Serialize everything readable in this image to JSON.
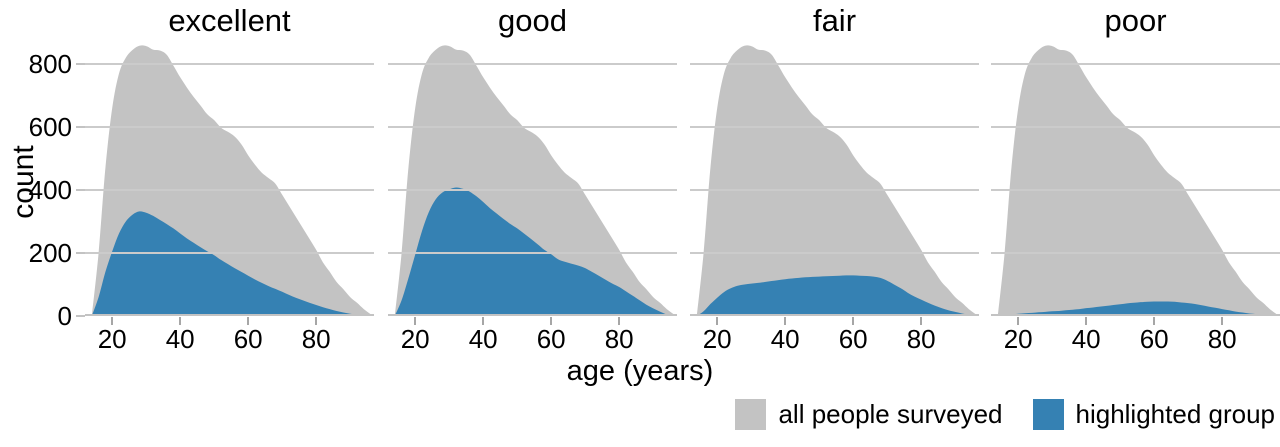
{
  "chart_data": {
    "type": "area",
    "description": "Small-multiples area chart: age distribution of survey counts, faceted by self-reported health status; gray = all people surveyed (same curve every facet), blue = highlighted group per facet.",
    "facets": [
      "excellent",
      "good",
      "fair",
      "poor"
    ],
    "xlabel": "age (years)",
    "ylabel": "count",
    "x_ticks": [
      20,
      40,
      60,
      80
    ],
    "y_ticks": [
      0,
      200,
      400,
      600,
      800
    ],
    "x_domain": [
      12,
      97
    ],
    "y_domain": [
      0,
      870
    ],
    "grid": "horizontal gridlines at y ticks, drawn over the areas",
    "legend_position": "bottom-right",
    "x": [
      14,
      16,
      18,
      20,
      22,
      24,
      26,
      28,
      30,
      32,
      34,
      36,
      38,
      40,
      42,
      44,
      46,
      48,
      50,
      52,
      54,
      56,
      58,
      60,
      62,
      64,
      66,
      68,
      70,
      72,
      74,
      76,
      78,
      80,
      82,
      84,
      86,
      88,
      90,
      92,
      94,
      96,
      97
    ],
    "series": [
      {
        "name": "all people surveyed",
        "color": "#c3c3c3",
        "note": "identical in every facet",
        "values": [
          0,
          200,
          470,
          660,
          770,
          820,
          845,
          858,
          857,
          846,
          843,
          830,
          795,
          758,
          725,
          695,
          668,
          640,
          622,
          598,
          585,
          570,
          545,
          510,
          480,
          455,
          438,
          420,
          385,
          350,
          315,
          280,
          245,
          210,
          170,
          140,
          108,
          85,
          60,
          42,
          22,
          6,
          0
        ]
      },
      {
        "name": "highlighted group",
        "color": "#3581b3",
        "values_by_facet": {
          "excellent": [
            0,
            60,
            140,
            205,
            262,
            300,
            322,
            332,
            328,
            318,
            305,
            292,
            278,
            262,
            246,
            232,
            218,
            205,
            193,
            178,
            165,
            152,
            140,
            128,
            116,
            105,
            95,
            86,
            77,
            67,
            58,
            50,
            42,
            35,
            28,
            22,
            16,
            11,
            7,
            4,
            2,
            1,
            0
          ],
          "good": [
            0,
            50,
            120,
            195,
            270,
            330,
            370,
            392,
            402,
            408,
            404,
            395,
            380,
            362,
            342,
            325,
            308,
            292,
            278,
            262,
            245,
            228,
            210,
            196,
            180,
            172,
            166,
            160,
            152,
            140,
            128,
            115,
            103,
            92,
            78,
            64,
            50,
            36,
            24,
            14,
            5,
            1,
            0
          ],
          "fair": [
            0,
            15,
            38,
            58,
            76,
            88,
            96,
            100,
            103,
            105,
            108,
            111,
            114,
            117,
            119,
            121,
            123,
            124,
            125,
            126,
            127,
            128,
            129,
            129,
            128,
            127,
            125,
            121,
            112,
            100,
            88,
            74,
            62,
            52,
            42,
            33,
            25,
            18,
            13,
            8,
            4,
            1,
            0
          ],
          "poor": [
            0,
            2,
            5,
            7,
            9,
            10,
            12,
            13,
            15,
            16,
            18,
            20,
            22,
            25,
            27,
            30,
            32,
            35,
            37,
            40,
            42,
            44,
            45,
            46,
            46,
            46,
            45,
            43,
            41,
            38,
            34,
            30,
            26,
            22,
            18,
            14,
            11,
            8,
            6,
            4,
            2,
            1,
            0
          ]
        }
      }
    ],
    "legend": [
      {
        "label": "all people surveyed",
        "color": "#c3c3c3"
      },
      {
        "label": "highlighted group",
        "color": "#3581b3"
      }
    ],
    "colors": {
      "background": "#ffffff",
      "text": "#000000",
      "gridline": "#cbcbcb",
      "axis_line": "#c3c3c3",
      "tick_mark": "#a6a6a6"
    }
  }
}
